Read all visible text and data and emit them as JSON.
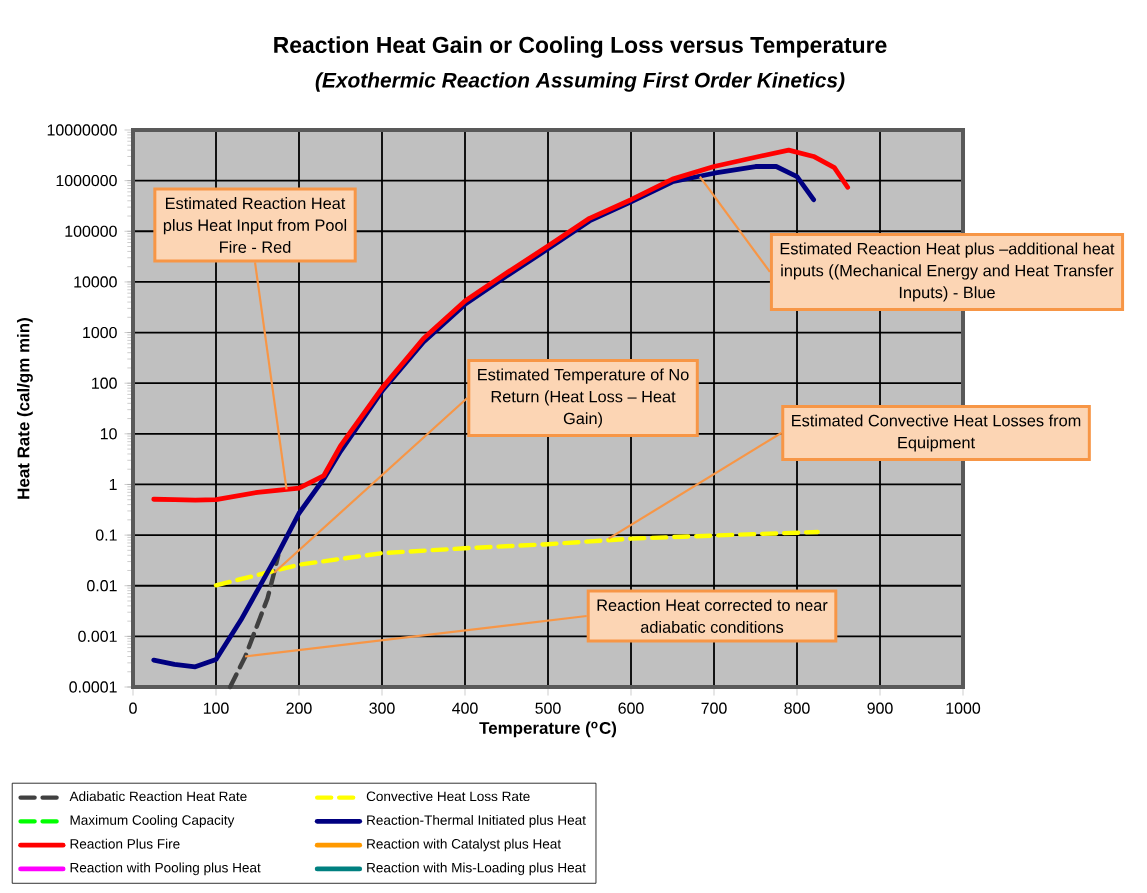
{
  "chart_data": {
    "type": "line",
    "title": "Reaction Heat Gain or Cooling Loss versus Temperature",
    "subtitle": "(Exothermic Reaction Assuming First Order Kinetics)",
    "xlabel": "Temperature ($^{o}$C)",
    "ylabel": "Heat Rate (cal/gm min)",
    "xlim": [
      0,
      1000
    ],
    "xticks": [
      0,
      100,
      200,
      300,
      400,
      500,
      600,
      700,
      800,
      900,
      1000
    ],
    "ylim": [
      0.0001,
      10000000
    ],
    "yticks": [
      0.0001,
      0.001,
      0.01,
      0.1,
      1,
      10,
      100,
      1000,
      10000,
      100000,
      1000000,
      10000000
    ],
    "log": "y",
    "grid": true,
    "legend": "bottom",
    "series": [
      {
        "name": "Adiabatic Reaction Heat Rate",
        "color": "#404040",
        "line_style": "dashed",
        "x": [
          117,
          135,
          162,
          170,
          175
        ],
        "values": [
          0.0001,
          0.00039,
          0.0056,
          0.018,
          0.04
        ]
      },
      {
        "name": "Convective Heat Loss Rate",
        "color": "#ffff00",
        "line_style": "dashed",
        "x": [
          100,
          200,
          300,
          400,
          500,
          600,
          700,
          825
        ],
        "values": [
          0.0102,
          0.026,
          0.044,
          0.055,
          0.066,
          0.085,
          0.098,
          0.115
        ]
      },
      {
        "name": "Maximum Cooling Capacity",
        "color": "#00ff00",
        "line_style": "dashed"
      },
      {
        "name": "Reaction-Thermal Initiated plus Heat",
        "color": "#000080",
        "x": [
          25,
          50,
          75,
          100,
          130,
          160,
          175,
          200,
          230,
          250,
          300,
          350,
          400,
          450,
          500,
          550,
          600,
          650,
          700,
          750,
          775,
          800,
          820
        ],
        "values": [
          0.00034,
          0.00028,
          0.00025,
          0.00035,
          0.0021,
          0.016,
          0.044,
          0.27,
          1.3,
          4.5,
          70,
          650,
          3600,
          13000,
          45000,
          160000,
          380000,
          950000,
          1400000,
          1900000,
          1900000,
          1200000,
          420000
        ]
      },
      {
        "name": "Reaction Plus Fire",
        "color": "#ff0000",
        "x": [
          25,
          50,
          75,
          100,
          150,
          200,
          230,
          250,
          300,
          350,
          400,
          450,
          500,
          550,
          600,
          650,
          700,
          750,
          790,
          820,
          845,
          861
        ],
        "values": [
          0.51,
          0.5,
          0.49,
          0.5,
          0.7,
          0.85,
          1.5,
          5.8,
          80,
          760,
          4200,
          15000,
          51000,
          180000,
          420000,
          1070000,
          1900000,
          2900000,
          4000000,
          3000000,
          1800000,
          740000
        ]
      },
      {
        "name": "Reaction with Catalyst plus Heat",
        "color": "#ff9900"
      },
      {
        "name": "Reaction with Pooling plus Heat",
        "color": "#ff00ff"
      },
      {
        "name": "Reaction with Mis-Loading plus Heat",
        "color": "#008080"
      }
    ],
    "annotations": [
      {
        "text": "Estimated Reaction Heat plus Heat Input from Pool Fire - Red",
        "x": 185,
        "y": 0.8
      },
      {
        "text": "Estimated Reaction Heat plus –additional heat inputs ((Mechanical Energy and Heat Transfer Inputs) - Blue",
        "x": 683,
        "y": 1200000
      },
      {
        "text": "Estimated Temperature of No Return (Heat Loss – Heat Gain)",
        "x": 170,
        "y": 0.018
      },
      {
        "text": "Estimated Convective Heat Losses from Equipment",
        "x": 573,
        "y": 0.085
      },
      {
        "text": "Reaction Heat corrected to near adiabatic conditions",
        "x": 135,
        "y": 0.0004
      }
    ]
  }
}
